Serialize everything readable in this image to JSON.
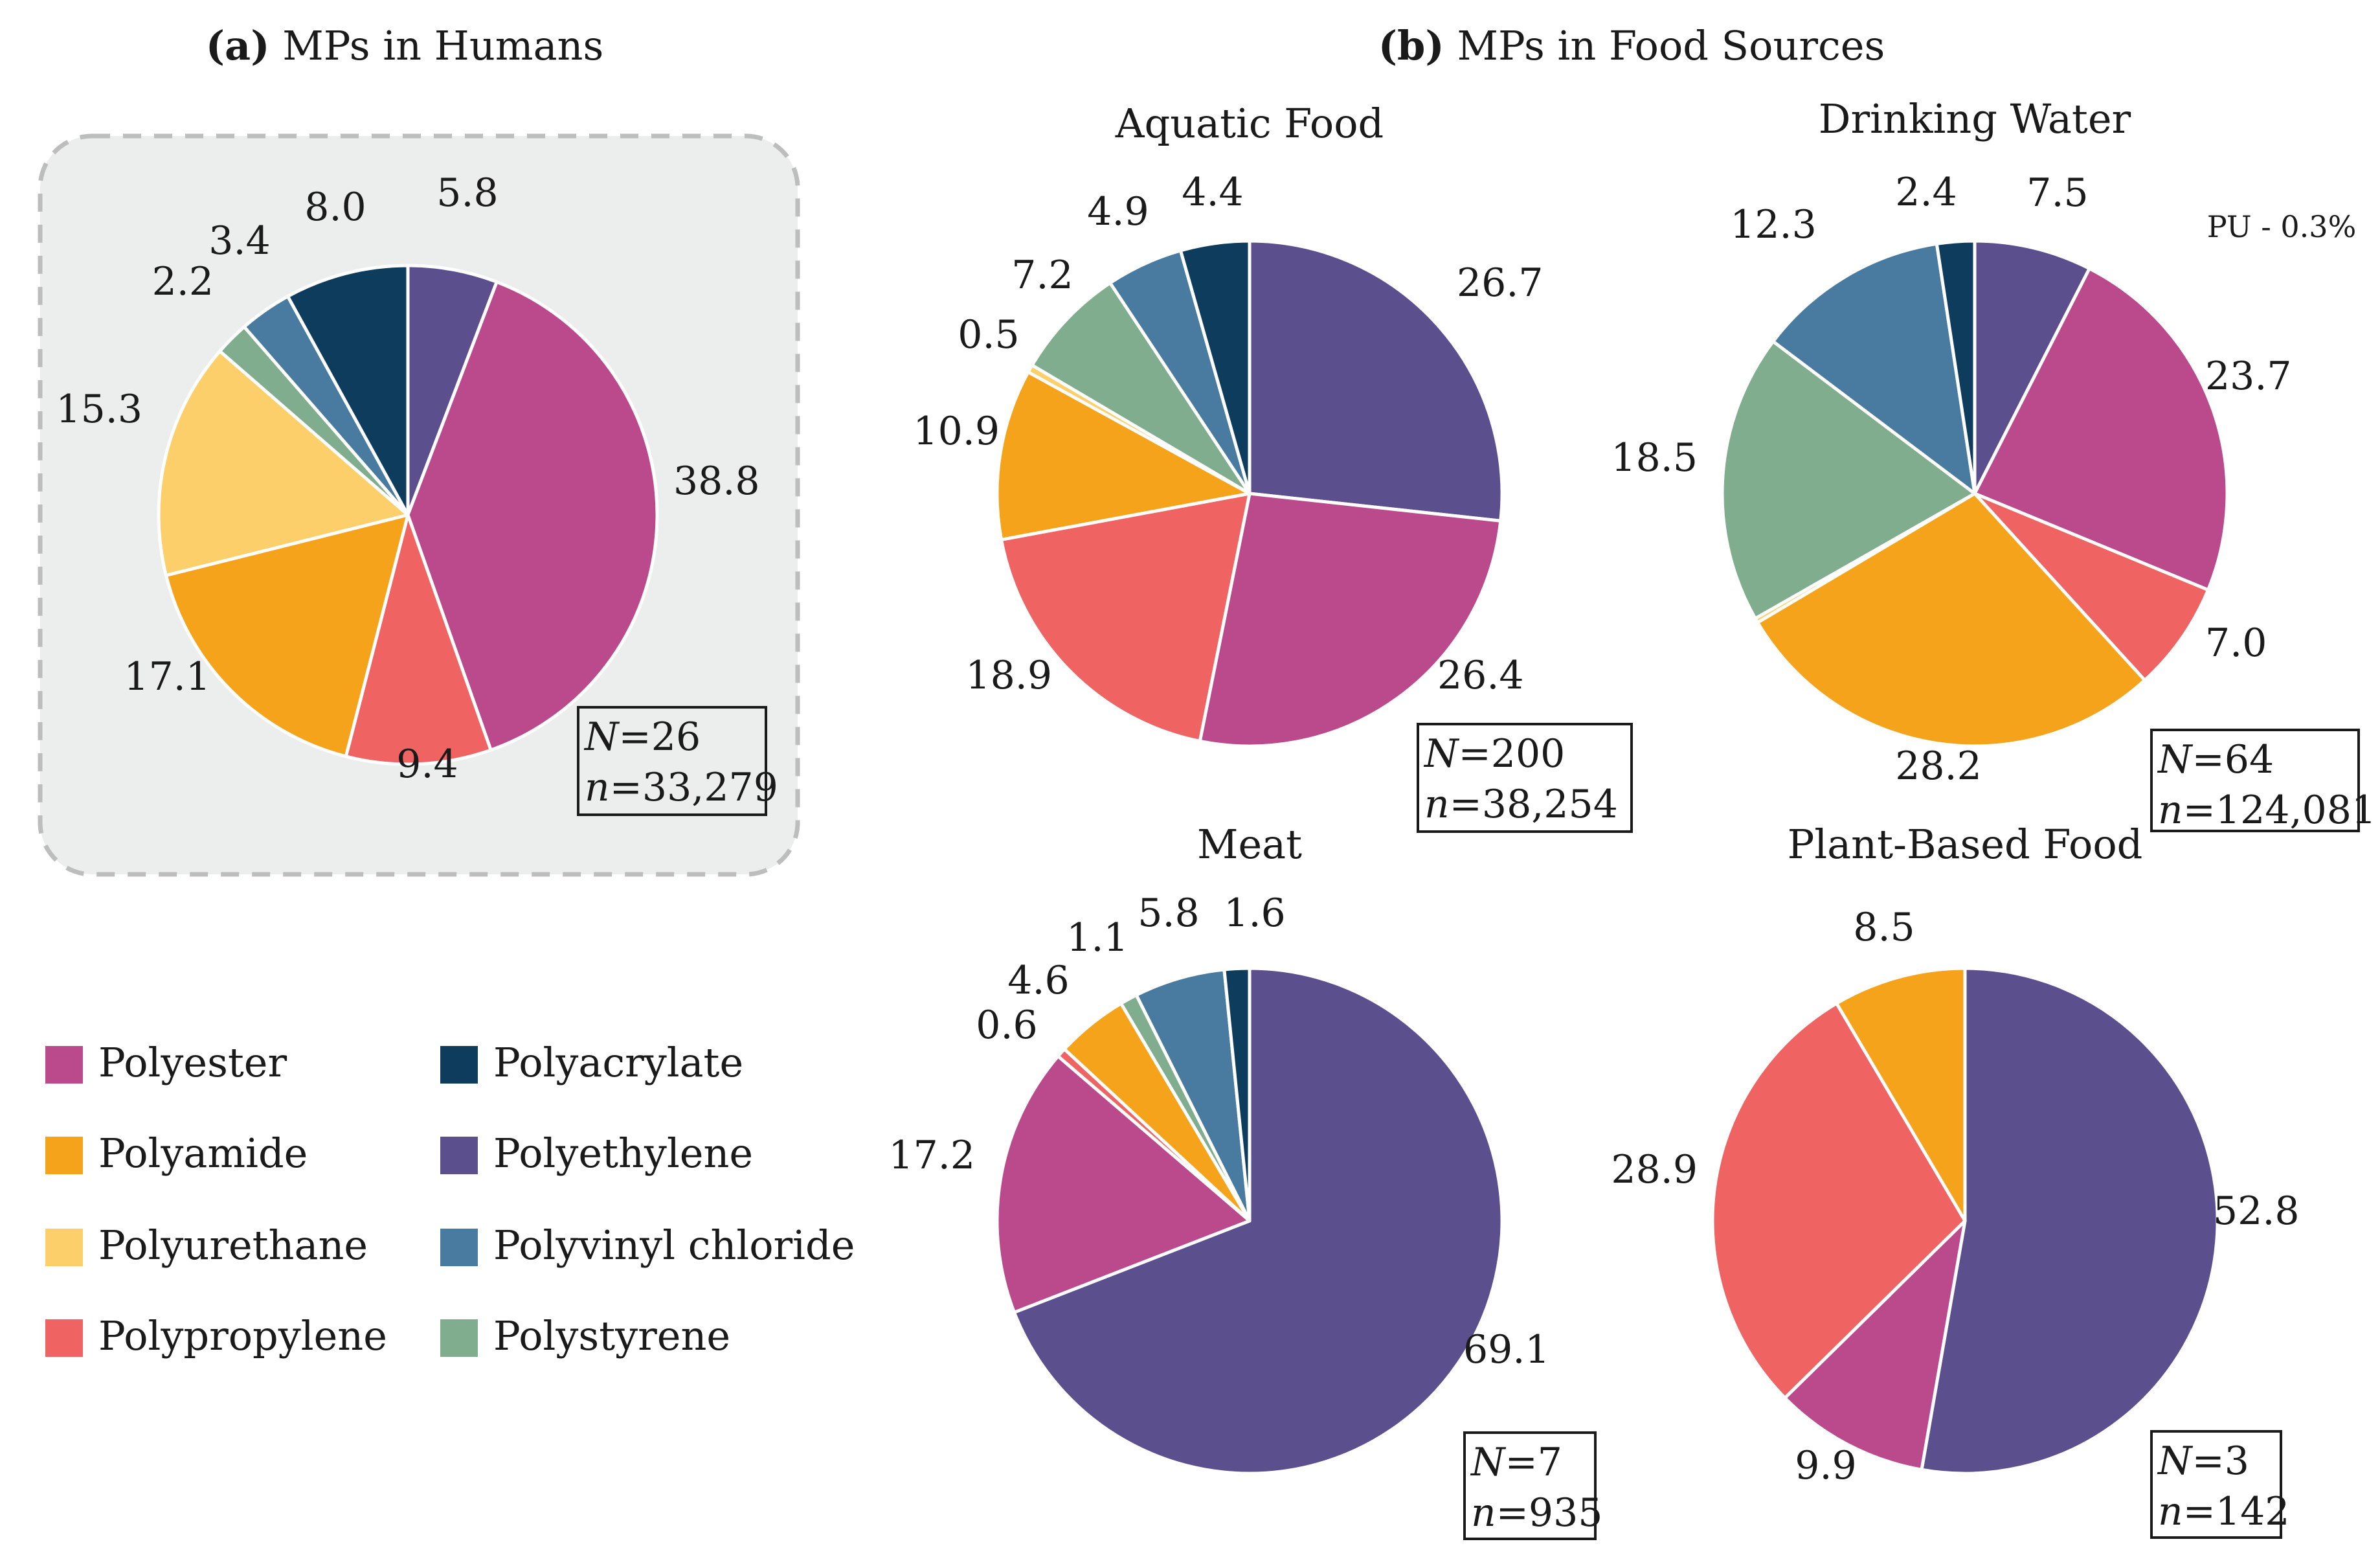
{
  "figure": {
    "panel_a_prefix": "(a)",
    "panel_a_title": "MPs in Humans",
    "panel_b_prefix": "(b)",
    "panel_b_title": "MPs in Food Sources"
  },
  "colors": {
    "Polyethylene": "#5b4f8e",
    "Polyester": "#bb4a8c",
    "Polypropylene": "#ef6363",
    "Polyamide": "#f6a31c",
    "Polyurethane": "#fdcf6a",
    "Polystyrene": "#7fad8e",
    "Polyvinyl chloride": "#497a9f",
    "Polyacrylate": "#0d3c5c"
  },
  "legend": {
    "col1": [
      "Polyester",
      "Polyamide",
      "Polyurethane",
      "Polypropylene"
    ],
    "col2": [
      "Polyacrylate",
      "Polyethylene",
      "Polyvinyl chloride",
      "Polystyrene"
    ]
  },
  "chart_data": [
    {
      "type": "pie",
      "panel": "a",
      "title": "",
      "order": "clockwise from 12 o'clock",
      "slices": [
        {
          "name": "Polyethylene",
          "value": 5.8
        },
        {
          "name": "Polyester",
          "value": 38.8
        },
        {
          "name": "Polypropylene",
          "value": 9.4
        },
        {
          "name": "Polyamide",
          "value": 17.1
        },
        {
          "name": "Polyurethane",
          "value": 15.3
        },
        {
          "name": "Polystyrene",
          "value": 2.2
        },
        {
          "name": "Polyvinyl chloride",
          "value": 3.4
        },
        {
          "name": "Polyacrylate",
          "value": 8.0
        }
      ],
      "N": "=26",
      "n": "=33,279"
    },
    {
      "type": "pie",
      "panel": "b",
      "title": "Aquatic Food",
      "order": "clockwise from 12 o'clock",
      "slices": [
        {
          "name": "Polyethylene",
          "value": 26.7
        },
        {
          "name": "Polyester",
          "value": 26.4
        },
        {
          "name": "Polypropylene",
          "value": 18.9
        },
        {
          "name": "Polyamide",
          "value": 10.9
        },
        {
          "name": "Polyurethane",
          "value": 0.5
        },
        {
          "name": "Polystyrene",
          "value": 7.2
        },
        {
          "name": "Polyvinyl chloride",
          "value": 4.9
        },
        {
          "name": "Polyacrylate",
          "value": 4.4
        }
      ],
      "N": "=200",
      "n": "=38,254"
    },
    {
      "type": "pie",
      "panel": "b",
      "title": "Drinking Water",
      "order": "clockwise from 12 o'clock",
      "note": "PU - 0.3%",
      "slices": [
        {
          "name": "Polyethylene",
          "value": 7.5
        },
        {
          "name": "Polyester",
          "value": 23.7
        },
        {
          "name": "Polypropylene",
          "value": 7.0
        },
        {
          "name": "Polyamide",
          "value": 28.2
        },
        {
          "name": "Polyurethane",
          "value": 0.3
        },
        {
          "name": "Polystyrene",
          "value": 18.5
        },
        {
          "name": "Polyvinyl chloride",
          "value": 12.3
        },
        {
          "name": "Polyacrylate",
          "value": 2.4
        }
      ],
      "N": "=64",
      "n": "=124,081"
    },
    {
      "type": "pie",
      "panel": "b",
      "title": "Meat",
      "order": "clockwise from 12 o'clock",
      "slices": [
        {
          "name": "Polyethylene",
          "value": 69.1
        },
        {
          "name": "Polyester",
          "value": 17.2
        },
        {
          "name": "Polypropylene",
          "value": 0.6
        },
        {
          "name": "Polyamide",
          "value": 4.6
        },
        {
          "name": "Polystyrene",
          "value": 1.1
        },
        {
          "name": "Polyvinyl chloride",
          "value": 5.8
        },
        {
          "name": "Polyacrylate",
          "value": 1.6
        }
      ],
      "N": "=7",
      "n": "=935"
    },
    {
      "type": "pie",
      "panel": "b",
      "title": "Plant-Based Food",
      "order": "clockwise from 12 o'clock",
      "slices": [
        {
          "name": "Polyethylene",
          "value": 52.8
        },
        {
          "name": "Polyester",
          "value": 9.9
        },
        {
          "name": "Polypropylene",
          "value": 28.9
        },
        {
          "name": "Polyamide",
          "value": 8.5
        }
      ],
      "N": "=3",
      "n": "=142"
    }
  ]
}
